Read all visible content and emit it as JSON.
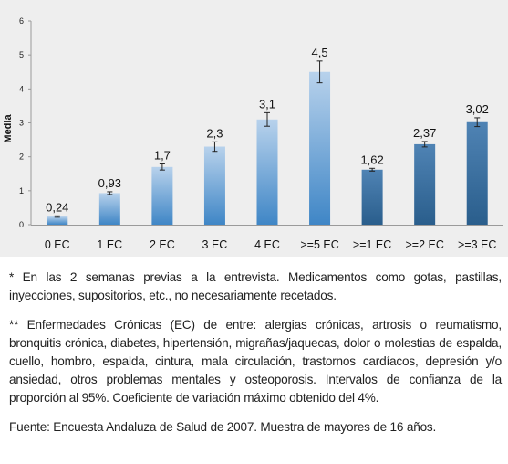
{
  "chart_data": {
    "type": "bar",
    "ylabel": "Media",
    "ylim": [
      0,
      6
    ],
    "yticks": [
      "0",
      "1",
      "2",
      "3",
      "4",
      "5",
      "6"
    ],
    "categories": [
      "0 EC",
      "1 EC",
      "2 EC",
      "3 EC",
      "4 EC",
      ">=5 EC",
      ">=1 EC",
      ">=2 EC",
      ">=3 EC"
    ],
    "values": [
      0.24,
      0.93,
      1.7,
      2.3,
      3.1,
      4.5,
      1.62,
      2.37,
      3.02
    ],
    "value_labels": [
      "0,24",
      "0,93",
      "1,7",
      "2,3",
      "3,1",
      "4,5",
      "1,62",
      "2,37",
      "3,02"
    ],
    "error_low": [
      0.22,
      0.89,
      1.61,
      2.16,
      2.9,
      4.18,
      1.58,
      2.29,
      2.89
    ],
    "error_high": [
      0.26,
      0.97,
      1.79,
      2.44,
      3.3,
      4.82,
      1.66,
      2.45,
      3.15
    ],
    "grid": false,
    "colors": {
      "group1_top": "#b8d2ec",
      "group1_bottom": "#3f86c6",
      "group2_top": "#4f83b4",
      "group2_bottom": "#2a5e8c",
      "panel_background": "#eeeeee"
    }
  },
  "notes": {
    "note1": "* En las 2 semanas previas a la entrevista. Medicamentos como gotas, pastillas, inyecciones, supositorios, etc., no necesariamente recetados.",
    "note2": "** Enfermedades Crónicas (EC) de entre: alergias crónicas, artrosis o reumatismo, bronquitis crónica, diabetes, hipertensión, migrañas/jaquecas, dolor o molestias de espalda, cuello, hombro, espalda, cintura, mala circulación, trastornos cardíacos, depresión y/o ansiedad, otros problemas mentales y osteoporosis. Intervalos de confianza de la proporción al 95%. Coeficiente de variación máximo obtenido del 4%.",
    "source": "Fuente: Encuesta Andaluza de Salud de 2007. Muestra de mayores de 16 años."
  }
}
